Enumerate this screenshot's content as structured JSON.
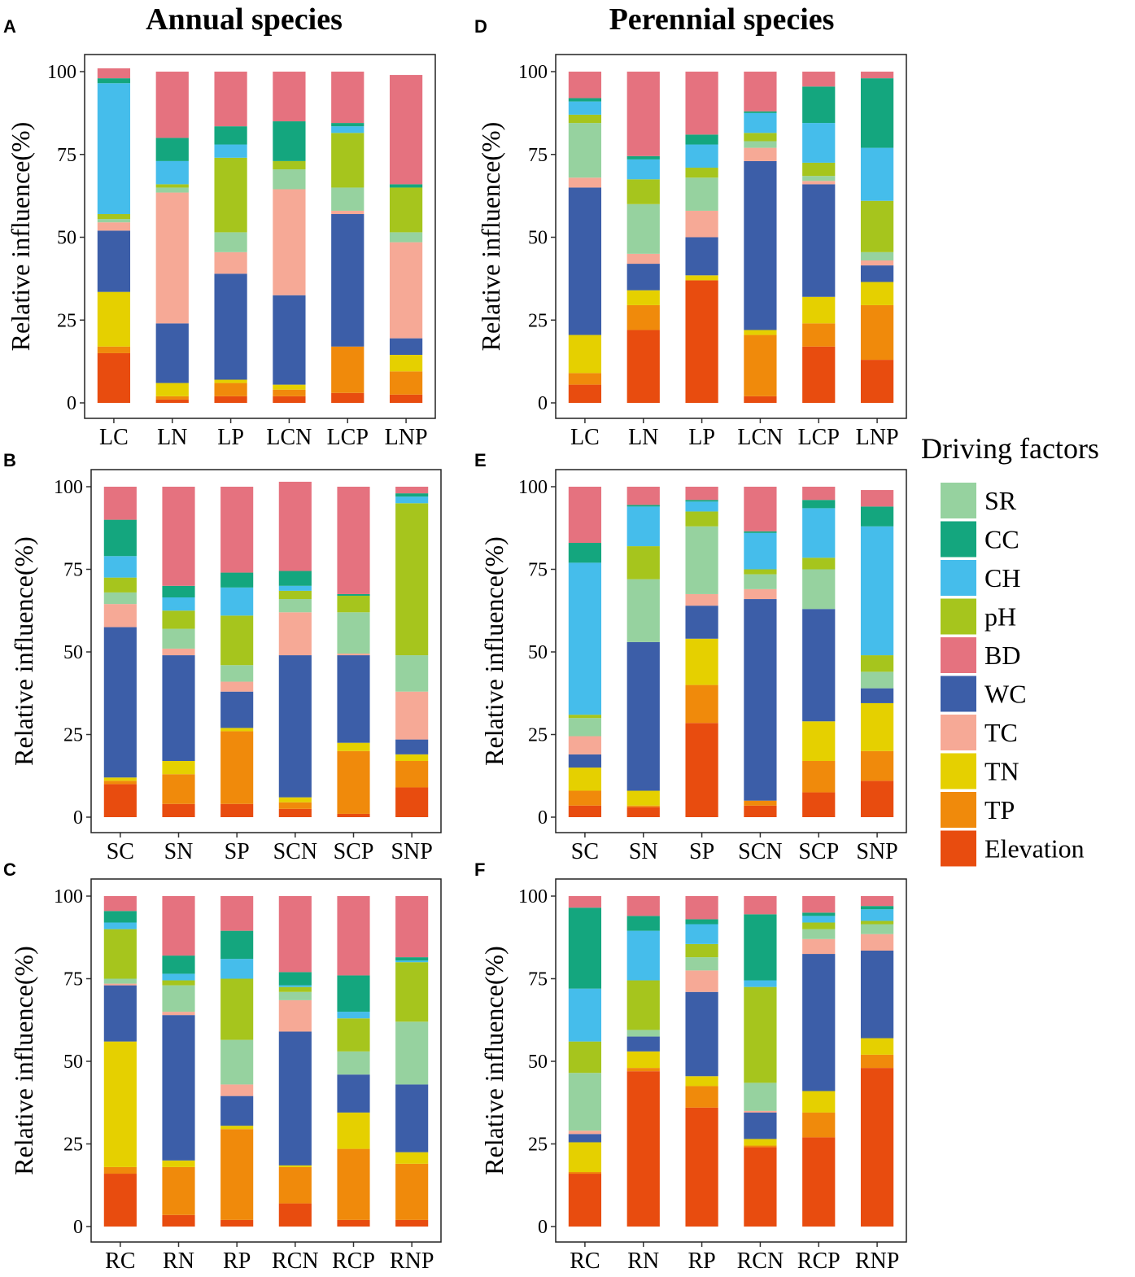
{
  "titles": {
    "annual": "Annual species",
    "perennial": "Perennial species"
  },
  "legend": {
    "title": "Driving factors",
    "items": [
      {
        "key": "SR",
        "label": "SR",
        "color": "#96d29f"
      },
      {
        "key": "CC",
        "label": "CC",
        "color": "#14a67e"
      },
      {
        "key": "CH",
        "label": "CH",
        "color": "#45bdeb"
      },
      {
        "key": "pH",
        "label": "pH",
        "color": "#a6c51d"
      },
      {
        "key": "BD",
        "label": "BD",
        "color": "#e5727f"
      },
      {
        "key": "WC",
        "label": "WC",
        "color": "#3c5ea8"
      },
      {
        "key": "TC",
        "label": "TC",
        "color": "#f6a996"
      },
      {
        "key": "TN",
        "label": "TN",
        "color": "#e5d000"
      },
      {
        "key": "TP",
        "label": "TP",
        "color": "#f08a0b"
      },
      {
        "key": "Elevation",
        "label": "Elevation",
        "color": "#e84c0f"
      }
    ]
  },
  "chart_data": [
    {
      "panel": "A",
      "type": "bar",
      "stacked": true,
      "ylabel": "Relative influence(%)",
      "ylim": [
        0,
        100
      ],
      "yticks": [
        "0",
        "25",
        "50",
        "75",
        "100"
      ],
      "categories": [
        "LC",
        "LN",
        "LP",
        "LCN",
        "LCP",
        "LNP"
      ],
      "series": [
        {
          "name": "Elevation",
          "values": [
            15,
            1,
            2,
            2,
            3,
            2.5
          ]
        },
        {
          "name": "TP",
          "values": [
            2,
            1,
            4,
            2,
            14,
            7
          ]
        },
        {
          "name": "TN",
          "values": [
            16.5,
            4,
            1,
            1.5,
            0,
            5
          ]
        },
        {
          "name": "WC",
          "values": [
            18.5,
            18,
            32,
            27,
            40,
            5
          ]
        },
        {
          "name": "TC",
          "values": [
            2.5,
            39.5,
            6.5,
            32,
            1,
            29
          ]
        },
        {
          "name": "SR",
          "values": [
            1,
            1.5,
            6,
            6,
            7,
            3
          ]
        },
        {
          "name": "pH",
          "values": [
            1.5,
            1,
            22.5,
            2.5,
            16.5,
            13.5
          ]
        },
        {
          "name": "CH",
          "values": [
            39.5,
            7,
            4,
            0,
            2,
            0
          ]
        },
        {
          "name": "CC",
          "values": [
            1.5,
            7,
            5.5,
            12,
            1,
            1
          ]
        },
        {
          "name": "BD",
          "values": [
            3,
            20,
            16.5,
            15,
            15.5,
            33
          ]
        }
      ]
    },
    {
      "panel": "B",
      "type": "bar",
      "stacked": true,
      "ylabel": "Relative influence(%)",
      "ylim": [
        0,
        100
      ],
      "yticks": [
        "0",
        "25",
        "50",
        "75",
        "100"
      ],
      "categories": [
        "SC",
        "SN",
        "SP",
        "SCN",
        "SCP",
        "SNP"
      ],
      "series": [
        {
          "name": "Elevation",
          "values": [
            10,
            4,
            4,
            2.5,
            1,
            9
          ]
        },
        {
          "name": "TP",
          "values": [
            1,
            9,
            22,
            2,
            19,
            8
          ]
        },
        {
          "name": "TN",
          "values": [
            1,
            4,
            1,
            1.5,
            2.5,
            2
          ]
        },
        {
          "name": "WC",
          "values": [
            45.5,
            32,
            11,
            43,
            26.5,
            4.5
          ]
        },
        {
          "name": "TC",
          "values": [
            7,
            2,
            3,
            13,
            0.5,
            14.5
          ]
        },
        {
          "name": "SR",
          "values": [
            3.5,
            6,
            5,
            4,
            12.5,
            11
          ]
        },
        {
          "name": "pH",
          "values": [
            4.5,
            5.5,
            15,
            2.5,
            5,
            46
          ]
        },
        {
          "name": "CH",
          "values": [
            6.5,
            4,
            8.5,
            1.5,
            0,
            2
          ]
        },
        {
          "name": "CC",
          "values": [
            11,
            3.5,
            4.5,
            4.5,
            0.5,
            1
          ]
        },
        {
          "name": "BD",
          "values": [
            10,
            30,
            26,
            27,
            32.5,
            2
          ]
        }
      ]
    },
    {
      "panel": "C",
      "type": "bar",
      "stacked": true,
      "ylabel": "Relative influence(%)",
      "ylim": [
        0,
        100
      ],
      "yticks": [
        "0",
        "25",
        "50",
        "75",
        "100"
      ],
      "categories": [
        "RC",
        "RN",
        "RP",
        "RCN",
        "RCP",
        "RNP"
      ],
      "series": [
        {
          "name": "Elevation",
          "values": [
            16,
            3.5,
            2,
            7,
            2,
            2
          ]
        },
        {
          "name": "TP",
          "values": [
            2,
            14.5,
            27.5,
            11,
            21.5,
            17
          ]
        },
        {
          "name": "TN",
          "values": [
            38,
            2,
            1,
            0.5,
            11,
            3.5
          ]
        },
        {
          "name": "WC",
          "values": [
            17,
            44,
            9,
            40.5,
            11.5,
            20.5
          ]
        },
        {
          "name": "TC",
          "values": [
            0.5,
            1,
            3.5,
            9.5,
            0,
            0
          ]
        },
        {
          "name": "SR",
          "values": [
            1.5,
            8,
            13.5,
            2.5,
            7,
            19
          ]
        },
        {
          "name": "pH",
          "values": [
            15,
            1.5,
            18.5,
            1.5,
            10,
            18
          ]
        },
        {
          "name": "CH",
          "values": [
            2,
            2,
            6,
            0.5,
            2,
            0.5
          ]
        },
        {
          "name": "CC",
          "values": [
            3.5,
            5.5,
            8.5,
            4,
            11,
            1
          ]
        },
        {
          "name": "BD",
          "values": [
            4.5,
            18,
            10.5,
            23,
            24,
            18.5
          ]
        }
      ]
    },
    {
      "panel": "D",
      "type": "bar",
      "stacked": true,
      "ylabel": "Relative influence(%)",
      "ylim": [
        0,
        100
      ],
      "yticks": [
        "0",
        "25",
        "50",
        "75",
        "100"
      ],
      "categories": [
        "LC",
        "LN",
        "LP",
        "LCN",
        "LCP",
        "LNP"
      ],
      "series": [
        {
          "name": "Elevation",
          "values": [
            5.5,
            22,
            37,
            2,
            17,
            13
          ]
        },
        {
          "name": "TP",
          "values": [
            3.5,
            7.5,
            0,
            18.5,
            7,
            16.5
          ]
        },
        {
          "name": "TN",
          "values": [
            11.5,
            4.5,
            1.5,
            1.5,
            8,
            7
          ]
        },
        {
          "name": "WC",
          "values": [
            44.5,
            8,
            11.5,
            51,
            34,
            5
          ]
        },
        {
          "name": "TC",
          "values": [
            3,
            3,
            8,
            4,
            1,
            1.5
          ]
        },
        {
          "name": "SR",
          "values": [
            16.5,
            15,
            10,
            2,
            1.5,
            2.5
          ]
        },
        {
          "name": "pH",
          "values": [
            2.5,
            7.5,
            3,
            2.5,
            4,
            15.5
          ]
        },
        {
          "name": "CH",
          "values": [
            4,
            6,
            7,
            6,
            12,
            16
          ]
        },
        {
          "name": "CC",
          "values": [
            1,
            1,
            3,
            0.5,
            11,
            21
          ]
        },
        {
          "name": "BD",
          "values": [
            8,
            25.5,
            19,
            12,
            4.5,
            2
          ]
        }
      ]
    },
    {
      "panel": "E",
      "type": "bar",
      "stacked": true,
      "ylabel": "Relative influence(%)",
      "ylim": [
        0,
        100
      ],
      "yticks": [
        "0",
        "25",
        "50",
        "75",
        "100"
      ],
      "categories": [
        "SC",
        "SN",
        "SP",
        "SCN",
        "SCP",
        "SNP"
      ],
      "series": [
        {
          "name": "Elevation",
          "values": [
            3.5,
            3,
            28.5,
            3.5,
            7.5,
            11
          ]
        },
        {
          "name": "TP",
          "values": [
            4.5,
            0.5,
            11.5,
            1.5,
            9.5,
            9
          ]
        },
        {
          "name": "TN",
          "values": [
            7,
            4.5,
            14,
            0,
            12,
            14.5
          ]
        },
        {
          "name": "WC",
          "values": [
            4,
            45,
            10,
            61,
            34,
            4.5
          ]
        },
        {
          "name": "TC",
          "values": [
            5.5,
            0,
            3.5,
            3,
            0,
            0
          ]
        },
        {
          "name": "SR",
          "values": [
            5.5,
            19,
            20.5,
            4.5,
            12,
            5
          ]
        },
        {
          "name": "pH",
          "values": [
            1,
            10,
            4.5,
            1.5,
            3.5,
            5
          ]
        },
        {
          "name": "CH",
          "values": [
            46,
            12,
            3,
            11,
            15,
            39
          ]
        },
        {
          "name": "CC",
          "values": [
            6,
            0.5,
            0.5,
            0.5,
            2.5,
            6
          ]
        },
        {
          "name": "BD",
          "values": [
            17,
            5.5,
            4,
            13.5,
            4,
            5
          ]
        }
      ]
    },
    {
      "panel": "F",
      "type": "bar",
      "stacked": true,
      "ylabel": "Relative influence(%)",
      "ylim": [
        0,
        100
      ],
      "yticks": [
        "0",
        "25",
        "50",
        "75",
        "100"
      ],
      "categories": [
        "RC",
        "RN",
        "RP",
        "RCN",
        "RCP",
        "RNP"
      ],
      "series": [
        {
          "name": "Elevation",
          "values": [
            16,
            47,
            36,
            24,
            27,
            48
          ]
        },
        {
          "name": "TP",
          "values": [
            0.5,
            1,
            6.5,
            0.5,
            7.5,
            4
          ]
        },
        {
          "name": "TN",
          "values": [
            9,
            5,
            3,
            2,
            6.5,
            5
          ]
        },
        {
          "name": "WC",
          "values": [
            2.5,
            4.5,
            25.5,
            8,
            41.5,
            26.5
          ]
        },
        {
          "name": "TC",
          "values": [
            1,
            0,
            6.5,
            0.5,
            4.5,
            5
          ]
        },
        {
          "name": "SR",
          "values": [
            17.5,
            2,
            4,
            8.5,
            3,
            3
          ]
        },
        {
          "name": "pH",
          "values": [
            9.5,
            15,
            4,
            29,
            2,
            1
          ]
        },
        {
          "name": "CH",
          "values": [
            16,
            15,
            6,
            2,
            2,
            3.5
          ]
        },
        {
          "name": "CC",
          "values": [
            24.5,
            4.5,
            1.5,
            20,
            1,
            1
          ]
        },
        {
          "name": "BD",
          "values": [
            3.5,
            6,
            7,
            5.5,
            5,
            3
          ]
        }
      ]
    }
  ]
}
